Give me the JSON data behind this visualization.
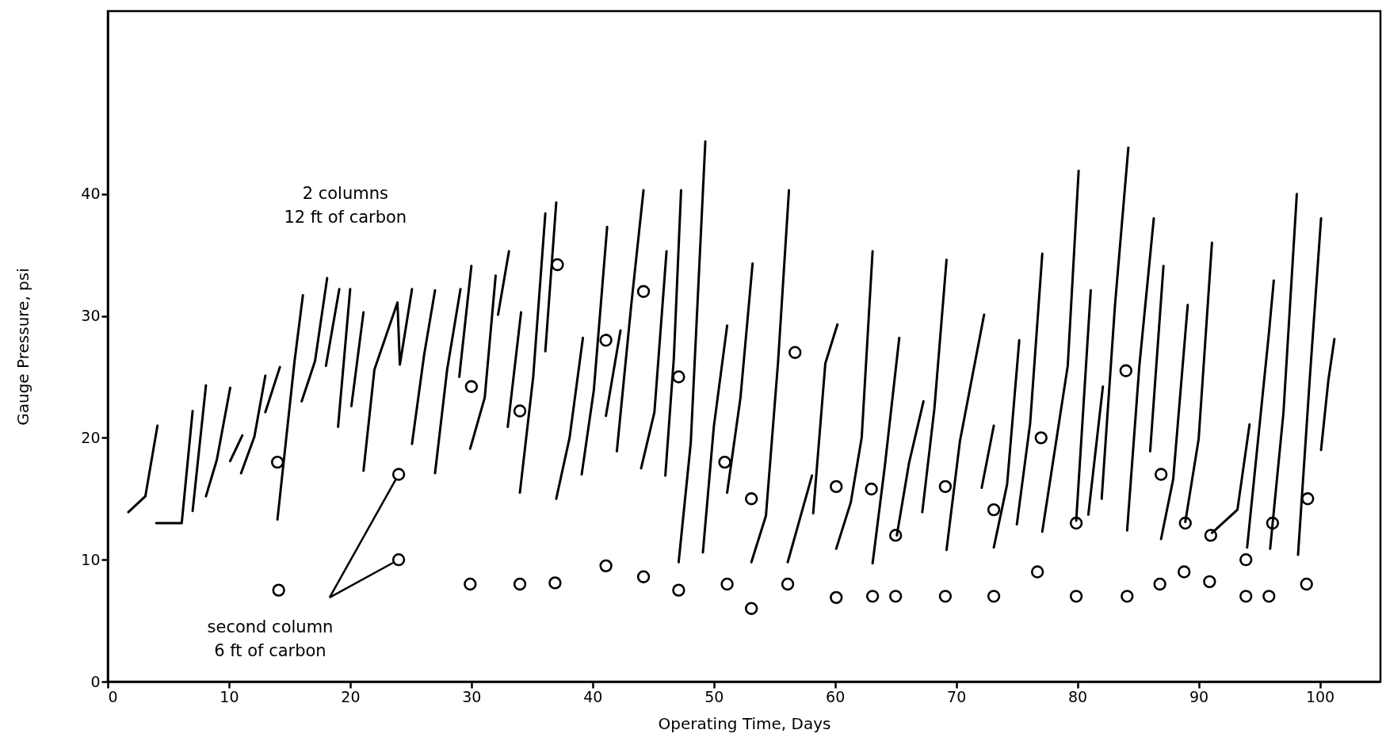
{
  "chart_data": {
    "type": "line",
    "xlabel": "Operating Time, Days",
    "ylabel": "Gauge Pressure, psi",
    "xlim": [
      0,
      105
    ],
    "xticks": [
      0,
      10,
      20,
      30,
      40,
      50,
      60,
      70,
      80,
      90,
      100
    ],
    "ylim": [
      0,
      55
    ],
    "yticks": [
      0,
      10,
      20,
      30,
      40
    ],
    "grid": false,
    "annotations": [
      "2 columns\n12 ft of carbon",
      {
        "text": "second column\n6 ft of carbon",
        "x": 24,
        "y": 10
      }
    ],
    "series": [
      {
        "color": "#000000",
        "marker": "none",
        "line_style": "solid",
        "x": [
          1.7,
          3.1,
          4.1,
          null,
          4.0,
          6.1,
          7.0,
          null,
          7.0,
          8.1,
          null,
          8.1,
          9.0,
          10.1,
          null,
          10.1,
          11.1,
          null,
          11.0,
          12.1,
          13.0,
          null,
          13.0,
          14.2,
          null,
          14.0,
          15.4,
          16.1,
          null,
          16.0,
          17.1,
          18.1,
          null,
          18.0,
          19.1,
          null,
          19.0,
          20.0,
          null,
          20.1,
          21.1,
          null,
          21.1,
          22.0,
          23.9,
          24.1,
          25.1,
          null,
          25.1,
          26.1,
          27.0,
          null,
          27.0,
          28.0,
          29.1,
          null,
          29.0,
          30.0,
          null,
          29.9,
          31.1,
          32.0,
          null,
          32.2,
          33.1,
          null,
          33.0,
          34.1,
          null,
          34.0,
          35.1,
          36.1,
          null,
          36.1,
          37.0,
          null,
          37.0,
          38.1,
          39.2,
          null,
          39.1,
          40.1,
          41.2,
          null,
          41.1,
          42.3,
          null,
          42.0,
          43.2,
          44.2,
          null,
          44.0,
          45.1,
          46.1,
          null,
          46.0,
          46.7,
          47.3,
          null,
          47.1,
          48.1,
          49.3,
          null,
          49.1,
          50.0,
          51.1,
          null,
          51.1,
          52.2,
          53.2,
          null,
          53.1,
          54.3,
          55.3,
          56.2,
          null,
          56.1,
          58.1,
          null,
          58.2,
          59.2,
          60.2,
          null,
          60.1,
          61.3,
          62.2,
          63.1,
          null,
          63.1,
          64.1,
          65.3,
          null,
          65.1,
          66.1,
          67.3,
          null,
          67.2,
          68.2,
          69.2,
          null,
          69.2,
          70.3,
          72.3,
          null,
          72.1,
          73.1,
          null,
          73.1,
          74.2,
          75.2,
          null,
          75.0,
          76.1,
          77.1,
          null,
          77.1,
          79.2,
          80.1,
          null,
          79.9,
          81.1,
          null,
          80.9,
          82.1,
          null,
          82.0,
          83.1,
          84.2,
          null,
          84.1,
          85.1,
          86.3,
          null,
          86.0,
          87.1,
          null,
          86.9,
          87.9,
          89.1,
          null,
          88.9,
          90.0,
          91.1,
          null,
          91.1,
          93.2,
          94.2,
          null,
          94.0,
          95.8,
          96.2,
          null,
          95.9,
          97.0,
          98.1,
          null,
          98.2,
          99.2,
          100.1,
          null,
          100.1,
          100.7,
          101.2
        ],
        "values": [
          13.9,
          15.2,
          21.0,
          null,
          13.0,
          13.0,
          22.2,
          null,
          14.0,
          24.3,
          null,
          15.2,
          18.2,
          24.1,
          null,
          18.1,
          20.2,
          null,
          17.1,
          20.1,
          25.1,
          null,
          22.1,
          25.8,
          null,
          13.3,
          26.2,
          31.7,
          null,
          23.0,
          26.3,
          33.1,
          null,
          25.9,
          32.2,
          null,
          20.9,
          32.2,
          null,
          22.6,
          30.3,
          null,
          17.3,
          25.6,
          31.1,
          26.0,
          32.2,
          null,
          19.5,
          26.8,
          32.1,
          null,
          17.1,
          25.6,
          32.2,
          null,
          25.0,
          34.1,
          null,
          19.1,
          23.3,
          33.3,
          null,
          30.1,
          35.3,
          null,
          20.9,
          30.3,
          null,
          15.5,
          25.0,
          38.4,
          null,
          27.1,
          39.3,
          null,
          15.0,
          20.0,
          28.2,
          null,
          17.0,
          23.9,
          37.3,
          null,
          21.8,
          28.8,
          null,
          18.9,
          31.0,
          40.3,
          null,
          17.5,
          22.1,
          35.3,
          null,
          16.9,
          26.5,
          40.3,
          null,
          9.8,
          19.6,
          44.3,
          null,
          10.6,
          20.9,
          29.2,
          null,
          15.5,
          23.3,
          34.3,
          null,
          9.8,
          13.6,
          26.2,
          40.3,
          null,
          9.8,
          16.9,
          null,
          13.8,
          26.1,
          29.3,
          null,
          10.9,
          14.7,
          20.0,
          35.3,
          null,
          9.7,
          17.6,
          28.2,
          null,
          12.0,
          17.9,
          23.0,
          null,
          13.9,
          22.4,
          34.6,
          null,
          10.8,
          19.7,
          30.1,
          null,
          15.9,
          21.0,
          null,
          11.0,
          16.2,
          28.0,
          null,
          12.9,
          21.2,
          35.1,
          null,
          12.3,
          25.9,
          41.9,
          null,
          13.2,
          32.1,
          null,
          13.7,
          24.2,
          null,
          15.0,
          30.9,
          43.8,
          null,
          12.4,
          25.8,
          38.0,
          null,
          18.9,
          34.1,
          null,
          11.7,
          16.6,
          30.9,
          null,
          13.1,
          19.9,
          36.0,
          null,
          12.2,
          14.1,
          21.1,
          null,
          11.0,
          28.6,
          32.9,
          null,
          10.9,
          22.1,
          40.0,
          null,
          10.4,
          25.3,
          38.0,
          null,
          19.0,
          24.7,
          28.1
        ]
      },
      {
        "type": "scatter",
        "color": "#000000",
        "marker": "circle",
        "x": [
          14.0,
          24.0,
          30.0,
          34.0,
          37.1,
          41.1,
          44.2,
          47.1,
          50.9,
          53.1,
          56.7,
          60.1,
          63.0,
          65.0,
          69.1,
          73.1,
          77.0,
          79.9,
          84.0,
          86.9,
          88.9,
          91.0,
          93.9,
          96.1,
          99.0
        ],
        "values": [
          18,
          17,
          24.2,
          22.2,
          34.2,
          28,
          32,
          25,
          18,
          15,
          27,
          16,
          15.8,
          12,
          16,
          14.1,
          20,
          13,
          25.5,
          17,
          13,
          12,
          10,
          13,
          15
        ]
      },
      {
        "type": "scatter",
        "color": "#000000",
        "marker": "circle",
        "x": [
          14.1,
          24.0,
          29.9,
          34.0,
          36.9,
          41.1,
          44.2,
          47.1,
          51.1,
          53.1,
          56.1,
          60.1,
          63.1,
          65.0,
          69.1,
          73.1,
          76.7,
          79.9,
          84.1,
          86.8,
          88.8,
          90.9,
          93.9,
          95.8,
          98.9
        ],
        "values": [
          7.5,
          10,
          8,
          8,
          8.1,
          9.5,
          8.6,
          7.5,
          8,
          6,
          8,
          6.9,
          7,
          7,
          7,
          7,
          9,
          7,
          7,
          8,
          9,
          8.2,
          7,
          7,
          8
        ]
      }
    ]
  }
}
